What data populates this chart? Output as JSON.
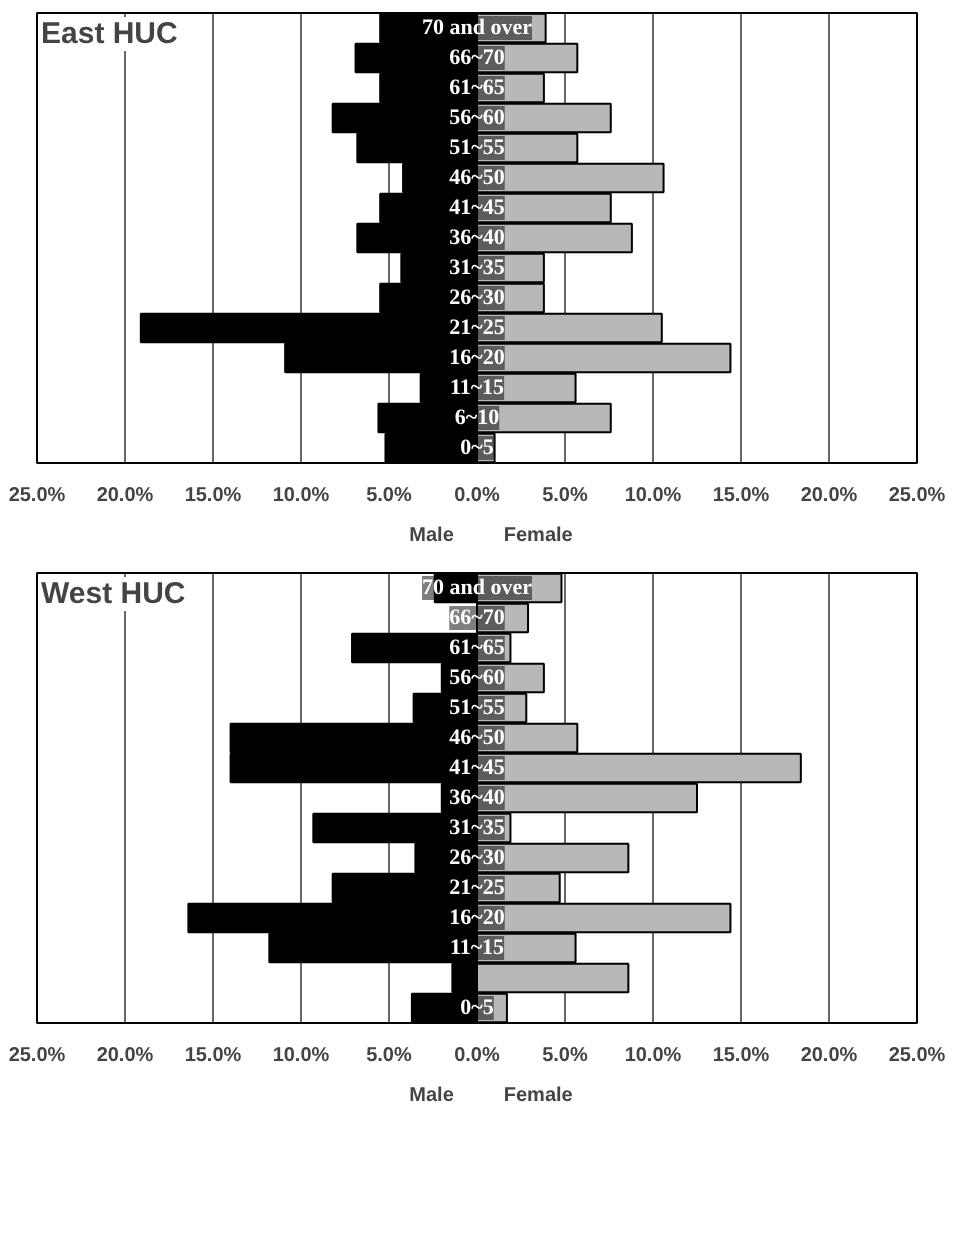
{
  "chart_data": [
    {
      "type": "bar",
      "orientation": "horizontal",
      "stacked": true,
      "title": "East HUC",
      "categories": [
        "70 and over",
        "66~70",
        "61~65",
        "56~60",
        "51~55",
        "46~50",
        "41~45",
        "36~40",
        "31~35",
        "26~30",
        "21~25",
        "16~20",
        "11~15",
        "6~10",
        "0~5"
      ],
      "series": [
        {
          "name": "Male",
          "color": "#000000",
          "values": [
            -5.5,
            -6.9,
            -5.5,
            -8.2,
            -6.8,
            -4.2,
            -5.5,
            -6.8,
            -4.3,
            -5.5,
            -19.1,
            -10.9,
            -3.2,
            -5.6,
            -5.2
          ]
        },
        {
          "name": "Female",
          "color": "#b8b8b8",
          "values": [
            3.9,
            5.7,
            3.8,
            7.6,
            5.7,
            10.6,
            7.6,
            8.8,
            3.8,
            3.8,
            10.5,
            14.4,
            5.6,
            7.6,
            1.0
          ]
        }
      ],
      "xlim": [
        -25,
        25
      ],
      "xticks": [
        {
          "value": -25,
          "label": "25.0%"
        },
        {
          "value": -20,
          "label": "20.0%"
        },
        {
          "value": -15,
          "label": "15.0%"
        },
        {
          "value": -10,
          "label": "10.0%"
        },
        {
          "value": -5,
          "label": "5.0%"
        },
        {
          "value": 0,
          "label": "0.0%"
        },
        {
          "value": 5,
          "label": "5.0%"
        },
        {
          "value": 10,
          "label": "10.0%"
        },
        {
          "value": 15,
          "label": "15.0%"
        },
        {
          "value": 20,
          "label": "20.0%"
        },
        {
          "value": 25,
          "label": "25.0%"
        }
      ],
      "grid": "x",
      "legend": "bottom"
    },
    {
      "type": "bar",
      "orientation": "horizontal",
      "stacked": true,
      "title": "West HUC",
      "categories": [
        "70 and over",
        "66~70",
        "61~65",
        "56~60",
        "51~55",
        "46~50",
        "41~45",
        "36~40",
        "31~35",
        "26~30",
        "21~25",
        "16~20",
        "11~15",
        null,
        "0~5"
      ],
      "series": [
        {
          "name": "Male",
          "color": "#000000",
          "values": [
            -2.4,
            0,
            -7.1,
            -2.0,
            -3.6,
            -14.0,
            -14.0,
            -2.0,
            -9.3,
            -3.5,
            -8.2,
            -16.4,
            -11.8,
            -1.4,
            -3.7
          ]
        },
        {
          "name": "Female",
          "color": "#b8b8b8",
          "values": [
            4.8,
            2.9,
            1.9,
            3.8,
            2.8,
            5.7,
            18.4,
            12.5,
            1.9,
            8.6,
            4.7,
            14.4,
            5.6,
            8.6,
            1.7
          ]
        }
      ],
      "xlim": [
        -25,
        25
      ],
      "xticks": [
        {
          "value": -25,
          "label": "25.0%"
        },
        {
          "value": -20,
          "label": "20.0%"
        },
        {
          "value": -15,
          "label": "15.0%"
        },
        {
          "value": -10,
          "label": "10.0%"
        },
        {
          "value": -5,
          "label": "5.0%"
        },
        {
          "value": 0,
          "label": "0.0%"
        },
        {
          "value": 5,
          "label": "5.0%"
        },
        {
          "value": 10,
          "label": "10.0%"
        },
        {
          "value": 15,
          "label": "15.0%"
        },
        {
          "value": 20,
          "label": "20.0%"
        },
        {
          "value": 25,
          "label": "25.0%"
        }
      ],
      "grid": "x",
      "legend": "bottom"
    }
  ]
}
